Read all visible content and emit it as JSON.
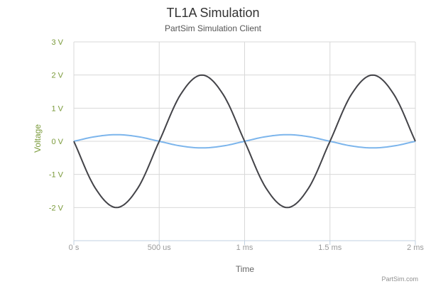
{
  "chart_data": {
    "type": "line",
    "title": "TL1A Simulation",
    "subtitle": "PartSim Simulation Client",
    "xlabel": "Time",
    "ylabel": "Voltage",
    "credit": "PartSim.com",
    "x_unit": "ms",
    "xlim": [
      0,
      2
    ],
    "ylim": [
      -3,
      3
    ],
    "x_ticks": [
      {
        "value": 0,
        "label": "0 s"
      },
      {
        "value": 0.5,
        "label": "500 us"
      },
      {
        "value": 1,
        "label": "1 ms"
      },
      {
        "value": 1.5,
        "label": "1.5 ms"
      },
      {
        "value": 2,
        "label": "2 ms"
      }
    ],
    "y_ticks": [
      {
        "value": 3,
        "label": "3 V"
      },
      {
        "value": 2,
        "label": "2 V"
      },
      {
        "value": 1,
        "label": "1 V"
      },
      {
        "value": 0,
        "label": "0 V"
      },
      {
        "value": -1,
        "label": "-1 V"
      },
      {
        "value": -2,
        "label": "-2 V"
      }
    ],
    "grid": true,
    "legend": "none",
    "series": [
      {
        "color": "#7cb5ec",
        "x": [
          0,
          0.125,
          0.25,
          0.375,
          0.5,
          0.625,
          0.75,
          0.875,
          1,
          1.125,
          1.25,
          1.375,
          1.5,
          1.625,
          1.75,
          1.875,
          2
        ],
        "values": [
          0,
          0.14,
          0.2,
          0.14,
          0,
          -0.14,
          -0.2,
          -0.14,
          0,
          0.14,
          0.2,
          0.14,
          0,
          -0.14,
          -0.2,
          -0.14,
          0
        ]
      },
      {
        "color": "#434348",
        "x": [
          0,
          0.125,
          0.25,
          0.375,
          0.5,
          0.625,
          0.75,
          0.875,
          1,
          1.125,
          1.25,
          1.375,
          1.5,
          1.625,
          1.75,
          1.875,
          2
        ],
        "values": [
          0,
          -1.41,
          -2,
          -1.41,
          0,
          1.41,
          2,
          1.41,
          0,
          -1.41,
          -2,
          -1.41,
          0,
          1.41,
          2,
          1.41,
          0
        ]
      }
    ]
  }
}
